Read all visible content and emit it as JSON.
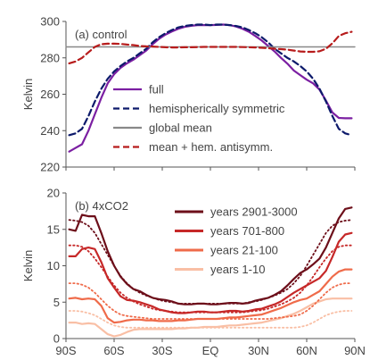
{
  "chart_data": [
    {
      "type": "line",
      "panel_label": "(a) control",
      "ylabel": "Kelvin",
      "xlim": [
        -90,
        90
      ],
      "ylim": [
        220,
        300
      ],
      "y_ticks": [
        220,
        240,
        260,
        280,
        300
      ],
      "grid": false,
      "legend_position": "center-bottom",
      "series": [
        {
          "name": "full",
          "color": "#7b1fa2",
          "dash": "solid",
          "x": [
            -88,
            -84,
            -80,
            -76,
            -72,
            -68,
            -64,
            -60,
            -56,
            -52,
            -48,
            -44,
            -40,
            -36,
            -32,
            -28,
            -24,
            -20,
            -16,
            -12,
            -8,
            -4,
            0,
            4,
            8,
            12,
            16,
            20,
            24,
            28,
            32,
            36,
            40,
            44,
            48,
            52,
            56,
            60,
            64,
            68,
            72,
            76,
            80,
            84,
            88
          ],
          "y": [
            228.5,
            230.5,
            232.5,
            240,
            249,
            258,
            266,
            271,
            274.5,
            277,
            279,
            281.5,
            284,
            287.5,
            290.5,
            292.8,
            294.5,
            296,
            297,
            297.6,
            298,
            298,
            298,
            298.1,
            298.3,
            298,
            297.2,
            296,
            294.3,
            292,
            289.5,
            286.5,
            283.5,
            280,
            276.8,
            273,
            270.5,
            268,
            266,
            262.5,
            256.5,
            250,
            247,
            246.8,
            246.8
          ]
        },
        {
          "name": "hemispherically symmetric",
          "color": "#0d1a6b",
          "dash": "dashed",
          "x": [
            -88,
            -84,
            -80,
            -76,
            -72,
            -68,
            -64,
            -60,
            -56,
            -52,
            -48,
            -44,
            -40,
            -36,
            -32,
            -28,
            -24,
            -20,
            -16,
            -12,
            -8,
            -4,
            0,
            4,
            8,
            12,
            16,
            20,
            24,
            28,
            32,
            36,
            40,
            44,
            48,
            52,
            56,
            60,
            64,
            68,
            72,
            76,
            80,
            84,
            88
          ],
          "y": [
            237.5,
            238.5,
            241,
            248,
            256,
            263,
            268.5,
            272.5,
            275.5,
            278,
            280,
            282.5,
            285,
            288.5,
            291.3,
            293.5,
            295.3,
            296.7,
            297.5,
            298,
            298.3,
            298.3,
            298,
            298.3,
            298.3,
            298,
            297.5,
            296.7,
            295.3,
            293.5,
            291.3,
            288.5,
            285,
            282.5,
            280,
            278,
            275.5,
            272.5,
            268.5,
            263,
            256,
            248,
            241,
            238.5,
            237.5
          ]
        },
        {
          "name": "global mean",
          "color": "#888888",
          "dash": "solid",
          "x": [
            -90,
            90
          ],
          "y": [
            286,
            286
          ]
        },
        {
          "name": "mean + hem. antisymm.",
          "color": "#b71c1c",
          "dash": "dashed",
          "x": [
            -88,
            -84,
            -80,
            -76,
            -72,
            -68,
            -64,
            -60,
            -56,
            -52,
            -48,
            -44,
            -40,
            -36,
            -32,
            -28,
            -24,
            -20,
            -16,
            -12,
            -8,
            -4,
            0,
            4,
            8,
            12,
            16,
            20,
            24,
            28,
            32,
            36,
            40,
            44,
            48,
            52,
            56,
            60,
            64,
            68,
            72,
            76,
            80,
            84,
            88
          ],
          "y": [
            277,
            278,
            280,
            283,
            286,
            287.5,
            287.8,
            287.8,
            287.7,
            287.3,
            287,
            286.5,
            286.3,
            286.2,
            286,
            285.8,
            285.7,
            285.7,
            285.8,
            285.8,
            285.9,
            286,
            286,
            286,
            286,
            286,
            286,
            285.9,
            285.8,
            285.7,
            285.5,
            285.3,
            285,
            284.8,
            284.5,
            284,
            283.5,
            283.3,
            283.3,
            283.6,
            285,
            288,
            292,
            293.5,
            294.3
          ]
        }
      ]
    },
    {
      "type": "line",
      "panel_label": "(b) 4xCO2",
      "ylabel": "Kelvin",
      "xlim": [
        -90,
        90
      ],
      "ylim": [
        0,
        20
      ],
      "y_ticks": [
        0,
        5,
        10,
        15,
        20
      ],
      "x_ticks": [
        "90S",
        "60S",
        "30S",
        "EQ",
        "30N",
        "60N",
        "90N"
      ],
      "x_tick_values": [
        -90,
        -60,
        -30,
        0,
        30,
        60,
        90
      ],
      "grid": false,
      "legend_position": "top-center",
      "dotted_lines_note": "",
      "series": [
        {
          "name": "years 2901-3000",
          "color": "#6d0f1a",
          "x": [
            -88,
            -84,
            -80,
            -76,
            -72,
            -68,
            -64,
            -60,
            -56,
            -52,
            -48,
            -44,
            -40,
            -36,
            -32,
            -28,
            -24,
            -20,
            -16,
            -12,
            -8,
            -4,
            0,
            4,
            8,
            12,
            16,
            20,
            24,
            28,
            32,
            36,
            40,
            44,
            48,
            52,
            56,
            60,
            64,
            68,
            72,
            76,
            80,
            84,
            88
          ],
          "y": [
            15,
            14.8,
            17,
            16.8,
            16.8,
            14.5,
            12,
            10,
            8.5,
            7.5,
            6.8,
            6.5,
            6,
            5.6,
            5.4,
            5.3,
            5.1,
            4.8,
            4.7,
            4.7,
            4.8,
            4.8,
            4.7,
            4.7,
            4.8,
            4.9,
            4.9,
            4.8,
            4.9,
            5.2,
            5.4,
            5.6,
            6,
            6.5,
            7.3,
            8.2,
            9,
            9.5,
            10.2,
            11,
            12.5,
            14.5,
            16.5,
            17.8,
            18
          ]
        },
        {
          "name": "years 701-800",
          "color": "#c62828",
          "x": [
            -88,
            -84,
            -80,
            -76,
            -72,
            -68,
            -64,
            -60,
            -56,
            -52,
            -48,
            -44,
            -40,
            -36,
            -32,
            -28,
            -24,
            -20,
            -16,
            -12,
            -8,
            -4,
            0,
            4,
            8,
            12,
            16,
            20,
            24,
            28,
            32,
            36,
            40,
            44,
            48,
            52,
            56,
            60,
            64,
            68,
            72,
            76,
            80,
            84,
            88
          ],
          "y": [
            11.3,
            11.3,
            12.3,
            12.5,
            12.3,
            10.5,
            8.3,
            7,
            5.8,
            5.3,
            5.2,
            5,
            4.7,
            4.4,
            4,
            3.8,
            3.6,
            3.5,
            3.5,
            3.6,
            3.7,
            3.7,
            3.6,
            3.6,
            3.7,
            3.8,
            3.8,
            3.7,
            3.8,
            4,
            4.1,
            4.4,
            4.7,
            5.1,
            5.7,
            6.3,
            6.8,
            7.3,
            7.8,
            8.3,
            9.3,
            11.2,
            13.3,
            14.3,
            14.5
          ]
        },
        {
          "name": "years 21-100",
          "color": "#ef6b4a",
          "x": [
            -88,
            -84,
            -80,
            -76,
            -72,
            -68,
            -64,
            -60,
            -56,
            -52,
            -48,
            -44,
            -40,
            -36,
            -32,
            -28,
            -24,
            -20,
            -16,
            -12,
            -8,
            -4,
            0,
            4,
            8,
            12,
            16,
            20,
            24,
            28,
            32,
            36,
            40,
            44,
            48,
            52,
            56,
            60,
            64,
            68,
            72,
            76,
            80,
            84,
            88
          ],
          "y": [
            5.5,
            5.6,
            5.4,
            5.5,
            5.4,
            4.5,
            2.8,
            2.2,
            2.3,
            2.5,
            2.6,
            2.6,
            2.5,
            2.5,
            2.4,
            2.4,
            2.4,
            2.5,
            2.5,
            2.6,
            2.7,
            2.7,
            2.7,
            2.7,
            2.8,
            2.9,
            2.9,
            3,
            3.1,
            3.2,
            3.3,
            3.6,
            3.9,
            4.2,
            4.6,
            5,
            5.3,
            5.5,
            6,
            6.5,
            7.5,
            8.5,
            9.2,
            9.5,
            9.5
          ]
        },
        {
          "name": "years 1-10",
          "color": "#f9bfa5",
          "x": [
            -88,
            -84,
            -80,
            -76,
            -72,
            -68,
            -64,
            -60,
            -56,
            -52,
            -48,
            -44,
            -40,
            -36,
            -32,
            -28,
            -24,
            -20,
            -16,
            -12,
            -8,
            -4,
            0,
            4,
            8,
            12,
            16,
            20,
            24,
            28,
            32,
            36,
            40,
            44,
            48,
            52,
            56,
            60,
            64,
            68,
            72,
            76,
            80,
            84,
            88
          ],
          "y": [
            2.2,
            2.2,
            2.0,
            2.1,
            2.0,
            1.3,
            0.6,
            0.3,
            0.5,
            0.9,
            1.2,
            1.3,
            1.3,
            1.3,
            1.3,
            1.3,
            1.3,
            1.4,
            1.4,
            1.5,
            1.5,
            1.6,
            1.6,
            1.6,
            1.7,
            1.8,
            1.8,
            1.9,
            2,
            2.1,
            2.2,
            2.4,
            2.6,
            2.8,
            3.1,
            3.4,
            3.8,
            4.3,
            4.8,
            5.1,
            5.4,
            5.5,
            5.5,
            5.5,
            5.5
          ]
        },
        {
          "name": "",
          "color": "#6d0f1a",
          "dash": "dotted",
          "x": [
            -88,
            -84,
            -80,
            -76,
            -72,
            -68,
            -64,
            -60,
            -56,
            -52,
            -48,
            -44,
            -40,
            -36,
            -32,
            -28,
            -24,
            -20,
            -16,
            -12,
            -8,
            -4,
            0,
            4,
            8,
            12,
            16,
            20,
            24,
            28,
            32,
            36,
            40,
            44,
            48,
            52,
            56,
            60,
            64,
            68,
            72,
            76,
            80,
            84,
            88
          ],
          "y": [
            16.3,
            16.2,
            16,
            15.5,
            14.5,
            13,
            11.5,
            10,
            8.6,
            7.6,
            6.8,
            6.3,
            5.9,
            5.6,
            5.3,
            5.1,
            5,
            4.8,
            4.8,
            4.8,
            4.8,
            4.8,
            4.8,
            4.8,
            4.8,
            4.8,
            4.8,
            4.8,
            5,
            5.1,
            5.3,
            5.6,
            5.9,
            6.3,
            6.8,
            7.6,
            8.6,
            10,
            11.5,
            13,
            14.5,
            15.5,
            16,
            16.2,
            16.3
          ]
        },
        {
          "name": "",
          "color": "#c62828",
          "dash": "dotted",
          "x": [
            -88,
            -84,
            -80,
            -76,
            -72,
            -68,
            -64,
            -60,
            -56,
            -52,
            -48,
            -44,
            -40,
            -36,
            -32,
            -28,
            -24,
            -20,
            -16,
            -12,
            -8,
            -4,
            0,
            4,
            8,
            12,
            16,
            20,
            24,
            28,
            32,
            36,
            40,
            44,
            48,
            52,
            56,
            60,
            64,
            68,
            72,
            76,
            80,
            84,
            88
          ],
          "y": [
            12.8,
            12.8,
            12.6,
            12,
            11,
            9.8,
            8.5,
            7.3,
            6.3,
            5.6,
            5.1,
            4.7,
            4.4,
            4.1,
            3.9,
            3.8,
            3.7,
            3.6,
            3.6,
            3.6,
            3.6,
            3.6,
            3.6,
            3.6,
            3.6,
            3.6,
            3.6,
            3.6,
            3.7,
            3.8,
            3.9,
            4.1,
            4.4,
            4.7,
            5.1,
            5.6,
            6.3,
            7.3,
            8.5,
            9.8,
            11,
            12,
            12.6,
            12.8,
            12.8
          ]
        },
        {
          "name": "",
          "color": "#ef6b4a",
          "dash": "dotted",
          "x": [
            -88,
            -84,
            -80,
            -76,
            -72,
            -68,
            -64,
            -60,
            -56,
            -52,
            -48,
            -44,
            -40,
            -36,
            -32,
            -28,
            -24,
            -20,
            -16,
            -12,
            -8,
            -4,
            0,
            4,
            8,
            12,
            16,
            20,
            24,
            28,
            32,
            36,
            40,
            44,
            48,
            52,
            56,
            60,
            64,
            68,
            72,
            76,
            80,
            84,
            88
          ],
          "y": [
            7.6,
            7.6,
            7.4,
            7,
            6.3,
            5.4,
            4.5,
            3.8,
            3.3,
            3.1,
            3,
            2.9,
            2.8,
            2.7,
            2.7,
            2.7,
            2.7,
            2.7,
            2.7,
            2.7,
            2.7,
            2.7,
            2.7,
            2.7,
            2.7,
            2.7,
            2.7,
            2.7,
            2.7,
            2.7,
            2.7,
            2.7,
            2.8,
            2.9,
            3,
            3.1,
            3.3,
            3.8,
            4.5,
            5.4,
            6.3,
            7,
            7.4,
            7.6,
            7.6
          ]
        },
        {
          "name": "",
          "color": "#f9bfa5",
          "dash": "dotted",
          "x": [
            -88,
            -84,
            -80,
            -76,
            -72,
            -68,
            -64,
            -60,
            -56,
            -52,
            -48,
            -44,
            -40,
            -36,
            -32,
            -28,
            -24,
            -20,
            -16,
            -12,
            -8,
            -4,
            0,
            4,
            8,
            12,
            16,
            20,
            24,
            28,
            32,
            36,
            40,
            44,
            48,
            52,
            56,
            60,
            64,
            68,
            72,
            76,
            80,
            84,
            88
          ],
          "y": [
            3.8,
            3.8,
            3.7,
            3.5,
            3.2,
            2.7,
            2.2,
            1.8,
            1.6,
            1.5,
            1.5,
            1.5,
            1.5,
            1.5,
            1.5,
            1.5,
            1.5,
            1.5,
            1.5,
            1.5,
            1.5,
            1.5,
            1.5,
            1.5,
            1.5,
            1.5,
            1.5,
            1.5,
            1.5,
            1.5,
            1.5,
            1.5,
            1.5,
            1.5,
            1.5,
            1.5,
            1.6,
            1.8,
            2.2,
            2.7,
            3.2,
            3.5,
            3.7,
            3.8,
            3.8
          ]
        }
      ]
    }
  ]
}
